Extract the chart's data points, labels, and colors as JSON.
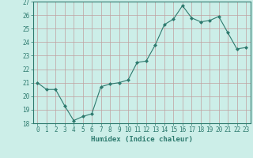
{
  "x": [
    0,
    1,
    2,
    3,
    4,
    5,
    6,
    7,
    8,
    9,
    10,
    11,
    12,
    13,
    14,
    15,
    16,
    17,
    18,
    19,
    20,
    21,
    22,
    23
  ],
  "y": [
    21.0,
    20.5,
    20.5,
    19.3,
    18.2,
    18.5,
    18.7,
    20.7,
    20.9,
    21.0,
    21.2,
    22.5,
    22.6,
    23.8,
    25.3,
    25.7,
    26.7,
    25.8,
    25.5,
    25.6,
    25.9,
    24.7,
    23.5,
    23.6
  ],
  "line_color": "#2d7a6e",
  "marker": "D",
  "marker_size": 2,
  "bg_color": "#cceee8",
  "grid_color": "#c0a0a0",
  "xlabel": "Humidex (Indice chaleur)",
  "ylim": [
    18,
    27
  ],
  "xlim": [
    -0.5,
    23.5
  ],
  "yticks": [
    18,
    19,
    20,
    21,
    22,
    23,
    24,
    25,
    26,
    27
  ],
  "xticks": [
    0,
    1,
    2,
    3,
    4,
    5,
    6,
    7,
    8,
    9,
    10,
    11,
    12,
    13,
    14,
    15,
    16,
    17,
    18,
    19,
    20,
    21,
    22,
    23
  ],
  "tick_color": "#2d7a6e",
  "label_fontsize": 6.5,
  "tick_fontsize": 5.5,
  "spine_color": "#2d7a6e",
  "linewidth": 0.8
}
